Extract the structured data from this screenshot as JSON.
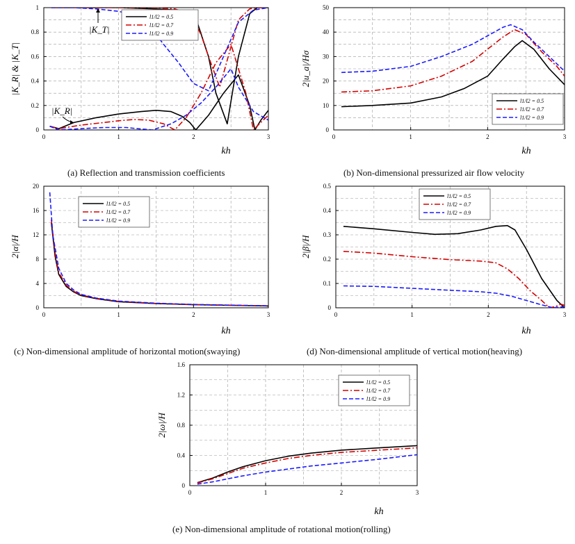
{
  "figure": {
    "captions": {
      "a": "(a) Reflection and transmission coefficients",
      "b": "(b) Non-dimensional pressurized air flow velocity",
      "c": "(c) Non-dimensional amplitude of horizontal motion(swaying)",
      "d": "(d) Non-dimensional amplitude of vertical motion(heaving)",
      "e": "(e) Non-dimensional amplitude of rotational motion(rolling)"
    }
  },
  "series_styles": [
    {
      "color": "#000000",
      "dash": "solid"
    },
    {
      "color": "#d40000",
      "dash": "dashdot"
    },
    {
      "color": "#1a1aff",
      "dash": "dash"
    }
  ],
  "chart_data": [
    {
      "id": "a",
      "type": "line",
      "title": "",
      "xlabel": "kh",
      "ylabel": "|K_R| & |K_T|",
      "xlim": [
        0,
        3
      ],
      "ylim": [
        0,
        1
      ],
      "xticks": [
        "0",
        "1",
        "2",
        "3"
      ],
      "yticks": [
        "0",
        "0.2",
        "0.4",
        "0.6",
        "0.8",
        "1"
      ],
      "legend": [
        "l1/l2 = 0.5",
        "l1/l2 = 0.7",
        "l1/l2 = 0.9"
      ],
      "legend_position": "top-center",
      "annotations": [
        "|K_T|",
        "|K_R|"
      ],
      "series": [
        {
          "name": "l1/l2 = 0.5 |K_R|",
          "style": 0,
          "x": [
            0.08,
            0.2,
            0.4,
            0.7,
            1.0,
            1.3,
            1.5,
            1.7,
            1.85,
            1.95,
            2.03,
            2.2,
            2.4,
            2.6,
            2.75,
            2.82,
            2.9,
            3.0
          ],
          "y": [
            0.03,
            0.01,
            0.06,
            0.1,
            0.13,
            0.15,
            0.16,
            0.15,
            0.11,
            0.06,
            0.0,
            0.12,
            0.3,
            0.45,
            0.2,
            0.0,
            0.08,
            0.16
          ]
        },
        {
          "name": "l1/l2 = 0.5 |K_T|",
          "style": 0,
          "x": [
            0.1,
            0.5,
            1.0,
            1.5,
            1.8,
            1.95,
            2.05,
            2.2,
            2.3,
            2.45,
            2.6,
            2.75,
            2.85,
            3.0
          ],
          "y": [
            1.0,
            1.0,
            1.0,
            0.99,
            0.98,
            0.95,
            0.88,
            0.6,
            0.3,
            0.05,
            0.6,
            0.95,
            1.0,
            1.0
          ]
        },
        {
          "name": "l1/l2 = 0.7 |K_R|",
          "style": 1,
          "x": [
            0.08,
            0.2,
            0.5,
            0.8,
            1.0,
            1.2,
            1.4,
            1.6,
            1.75,
            1.9,
            2.1,
            2.3,
            2.5,
            2.7,
            2.8,
            2.88,
            3.0
          ],
          "y": [
            0.03,
            0.01,
            0.04,
            0.06,
            0.075,
            0.085,
            0.08,
            0.05,
            0.0,
            0.1,
            0.3,
            0.55,
            0.7,
            0.3,
            0.0,
            0.05,
            0.12
          ]
        },
        {
          "name": "l1/l2 = 0.7 |K_T|",
          "style": 1,
          "x": [
            0.1,
            0.5,
            1.0,
            1.5,
            1.75,
            1.9,
            2.0,
            2.1,
            2.2,
            2.35,
            2.5,
            2.6,
            2.75,
            2.85,
            3.0
          ],
          "y": [
            1.0,
            1.0,
            1.0,
            1.0,
            0.99,
            0.96,
            0.9,
            0.78,
            0.6,
            0.35,
            0.68,
            0.9,
            0.99,
            1.0,
            1.0
          ]
        },
        {
          "name": "l1/l2 = 0.9 |K_R|",
          "style": 2,
          "x": [
            0.08,
            0.2,
            0.5,
            0.8,
            1.1,
            1.25,
            1.45,
            1.7,
            1.9,
            2.1,
            2.3,
            2.5,
            2.6,
            2.8,
            3.0
          ],
          "y": [
            0.03,
            0.0,
            0.01,
            0.02,
            0.02,
            0.01,
            0.0,
            0.05,
            0.12,
            0.22,
            0.35,
            0.5,
            0.35,
            0.15,
            0.08
          ]
        },
        {
          "name": "l1/l2 = 0.9 |K_T|",
          "style": 2,
          "x": [
            0.1,
            0.4,
            0.7,
            1.0,
            1.25,
            1.45,
            1.6,
            1.8,
            2.0,
            2.2,
            2.4,
            2.6,
            2.8,
            3.0
          ],
          "y": [
            1.0,
            1.0,
            0.99,
            0.97,
            0.93,
            0.82,
            0.7,
            0.55,
            0.38,
            0.32,
            0.6,
            0.88,
            0.98,
            1.0
          ]
        }
      ]
    },
    {
      "id": "b",
      "type": "line",
      "title": "",
      "xlabel": "kh",
      "ylabel": "2|u_a|/Hσ",
      "xlim": [
        0,
        3
      ],
      "ylim": [
        0,
        50
      ],
      "xticks": [
        "0",
        "1",
        "2",
        "3"
      ],
      "yticks": [
        "0",
        "10",
        "20",
        "30",
        "40",
        "50"
      ],
      "legend": [
        "l1/l2 = 0.5",
        "l1/l2 = 0.7",
        "l1/l2 = 0.9"
      ],
      "legend_position": "bottom-right",
      "series": [
        {
          "name": "l1/l2 = 0.5",
          "style": 0,
          "x": [
            0.1,
            0.5,
            1.0,
            1.4,
            1.7,
            2.0,
            2.2,
            2.35,
            2.45,
            2.6,
            2.8,
            3.0
          ],
          "y": [
            9.5,
            10,
            11,
            13.5,
            17,
            22,
            29,
            34,
            36.5,
            33,
            25,
            18.5
          ]
        },
        {
          "name": "l1/l2 = 0.7",
          "style": 1,
          "x": [
            0.1,
            0.5,
            1.0,
            1.4,
            1.8,
            2.0,
            2.2,
            2.35,
            2.5,
            2.7,
            2.9,
            3.0
          ],
          "y": [
            15.5,
            16,
            18,
            22,
            28,
            33,
            38,
            41,
            39,
            32,
            26,
            22
          ]
        },
        {
          "name": "l1/l2 = 0.9",
          "style": 2,
          "x": [
            0.1,
            0.5,
            1.0,
            1.4,
            1.8,
            2.0,
            2.2,
            2.3,
            2.45,
            2.6,
            2.8,
            3.0
          ],
          "y": [
            23.5,
            24,
            26,
            30,
            35,
            38.5,
            42,
            43,
            41,
            36,
            30,
            24
          ]
        }
      ]
    },
    {
      "id": "c",
      "type": "line",
      "title": "",
      "xlabel": "kh",
      "ylabel": "2|α|/H",
      "xlim": [
        0,
        3
      ],
      "ylim": [
        0,
        20
      ],
      "xticks": [
        "0",
        "1",
        "2",
        "3"
      ],
      "yticks": [
        "0",
        "4",
        "8",
        "12",
        "16",
        "20"
      ],
      "legend": [
        "l1/l2 = 0.5",
        "l1/l2 = 0.7",
        "l1/l2 = 0.9"
      ],
      "legend_position": "top-left",
      "series": [
        {
          "name": "l1/l2 = 0.5",
          "style": 0,
          "x": [
            0.1,
            0.15,
            0.2,
            0.3,
            0.4,
            0.5,
            0.7,
            1.0,
            1.5,
            2.0,
            2.5,
            3.0
          ],
          "y": [
            14,
            8.5,
            5.5,
            3.5,
            2.6,
            2.0,
            1.5,
            1.0,
            0.7,
            0.5,
            0.4,
            0.3
          ]
        },
        {
          "name": "l1/l2 = 0.7",
          "style": 1,
          "x": [
            0.1,
            0.15,
            0.2,
            0.3,
            0.4,
            0.5,
            0.7,
            1.0,
            1.5,
            2.0,
            2.5,
            3.0
          ],
          "y": [
            14.5,
            9,
            5.8,
            3.7,
            2.7,
            2.1,
            1.55,
            1.05,
            0.72,
            0.52,
            0.42,
            0.32
          ]
        },
        {
          "name": "l1/l2 = 0.9",
          "style": 2,
          "x": [
            0.08,
            0.12,
            0.2,
            0.3,
            0.4,
            0.5,
            0.7,
            1.0,
            1.5,
            2.0,
            2.5,
            3.0
          ],
          "y": [
            19,
            12,
            6.5,
            4.0,
            2.9,
            2.2,
            1.6,
            1.1,
            0.75,
            0.55,
            0.43,
            0.33
          ]
        }
      ]
    },
    {
      "id": "d",
      "type": "line",
      "title": "",
      "xlabel": "kh",
      "ylabel": "2|β|/H",
      "xlim": [
        0,
        3
      ],
      "ylim": [
        0,
        0.5
      ],
      "xticks": [
        "0",
        "1",
        "2",
        "3"
      ],
      "yticks": [
        "0",
        "0.1",
        "0.2",
        "0.3",
        "0.4",
        "0.5"
      ],
      "legend": [
        "l1/l2 = 0.5",
        "l1/l2 = 0.7",
        "l1/l2 = 0.9"
      ],
      "legend_position": "top-center",
      "series": [
        {
          "name": "l1/l2 = 0.5",
          "style": 0,
          "x": [
            0.1,
            0.5,
            1.0,
            1.3,
            1.6,
            1.9,
            2.1,
            2.25,
            2.35,
            2.5,
            2.7,
            2.9,
            3.0
          ],
          "y": [
            0.335,
            0.325,
            0.31,
            0.302,
            0.305,
            0.32,
            0.335,
            0.338,
            0.32,
            0.24,
            0.12,
            0.03,
            0.0
          ]
        },
        {
          "name": "l1/l2 = 0.7",
          "style": 1,
          "x": [
            0.1,
            0.5,
            1.0,
            1.5,
            1.9,
            2.1,
            2.25,
            2.4,
            2.55,
            2.7,
            2.8,
            2.88,
            2.95,
            3.0
          ],
          "y": [
            0.232,
            0.225,
            0.21,
            0.198,
            0.192,
            0.185,
            0.16,
            0.12,
            0.07,
            0.03,
            0.0,
            0.005,
            0.015,
            0.01
          ]
        },
        {
          "name": "l1/l2 = 0.9",
          "style": 2,
          "x": [
            0.1,
            0.5,
            1.0,
            1.5,
            1.9,
            2.1,
            2.3,
            2.5,
            2.7,
            2.85,
            3.0
          ],
          "y": [
            0.09,
            0.088,
            0.08,
            0.072,
            0.066,
            0.06,
            0.048,
            0.03,
            0.012,
            0.0,
            0.005
          ]
        }
      ]
    },
    {
      "id": "e",
      "type": "line",
      "title": "",
      "xlabel": "kh",
      "ylabel": "2|ω|/H",
      "xlim": [
        0,
        3
      ],
      "ylim": [
        0,
        1.6
      ],
      "xticks": [
        "0",
        "1",
        "2",
        "3"
      ],
      "yticks": [
        "0",
        "0.4",
        "0.8",
        "1.2",
        "1.6"
      ],
      "legend": [
        "l1/l2 = 0.5",
        "l1/l2 = 0.7",
        "l1/l2 = 0.9"
      ],
      "legend_position": "top-right",
      "series": [
        {
          "name": "l1/l2 = 0.5",
          "style": 0,
          "x": [
            0.1,
            0.3,
            0.5,
            0.7,
            1.0,
            1.3,
            1.6,
            2.0,
            2.5,
            3.0
          ],
          "y": [
            0.04,
            0.1,
            0.18,
            0.25,
            0.33,
            0.39,
            0.43,
            0.47,
            0.5,
            0.53
          ]
        },
        {
          "name": "l1/l2 = 0.7",
          "style": 1,
          "x": [
            0.1,
            0.3,
            0.5,
            0.7,
            1.0,
            1.3,
            1.6,
            2.0,
            2.5,
            3.0
          ],
          "y": [
            0.035,
            0.09,
            0.16,
            0.23,
            0.3,
            0.36,
            0.4,
            0.44,
            0.47,
            0.5
          ]
        },
        {
          "name": "l1/l2 = 0.9",
          "style": 2,
          "x": [
            0.1,
            0.3,
            0.5,
            0.7,
            1.0,
            1.3,
            1.6,
            2.0,
            2.5,
            3.0
          ],
          "y": [
            0.02,
            0.05,
            0.09,
            0.13,
            0.18,
            0.22,
            0.26,
            0.3,
            0.35,
            0.41
          ]
        }
      ]
    }
  ]
}
